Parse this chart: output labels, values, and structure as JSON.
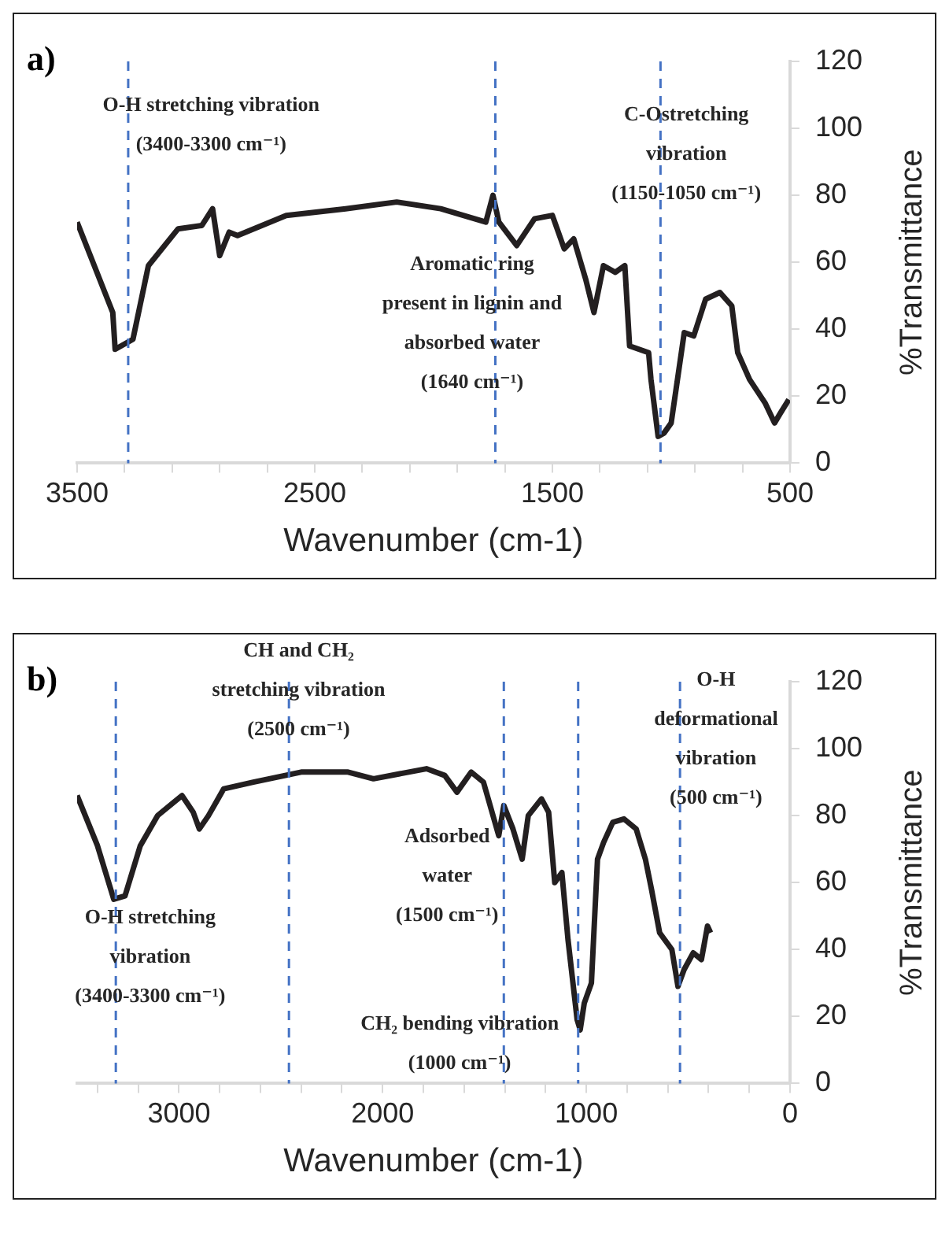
{
  "chart_data": [
    {
      "type": "line",
      "title": "a)",
      "xlabel": "Wavenumber (cm-1)",
      "ylabel": "%Transmittance",
      "xlim": [
        3500,
        500
      ],
      "ylim": [
        0,
        120
      ],
      "xticks": [
        3500,
        {
          "value": 3300,
          "label": null
        },
        {
          "value": 3100,
          "label": null
        },
        {
          "value": 2900,
          "label": null
        },
        {
          "value": 2700,
          "label": null
        },
        2500,
        {
          "value": 2300,
          "label": null
        },
        {
          "value": 2100,
          "label": null
        },
        {
          "value": 1900,
          "label": null
        },
        {
          "value": 1700,
          "label": null
        },
        1500,
        {
          "value": 1300,
          "label": null
        },
        {
          "value": 1100,
          "label": null
        },
        {
          "value": 900,
          "label": null
        },
        {
          "value": 700,
          "label": null
        },
        500
      ],
      "yticks": [
        0,
        20,
        40,
        60,
        80,
        100,
        120
      ],
      "grid": false,
      "legend": false,
      "marker": "none",
      "line_style": "solid",
      "series": [
        {
          "color": "#231f20",
          "x": [
            3500,
            3350,
            3340,
            3290,
            3265,
            3200,
            3075,
            2975,
            2930,
            2900,
            2860,
            2825,
            2620,
            2370,
            2155,
            1970,
            1780,
            1750,
            1725,
            1650,
            1575,
            1500,
            1450,
            1410,
            1360,
            1325,
            1285,
            1235,
            1195,
            1175,
            1095,
            1085,
            1055,
            1030,
            1000,
            945,
            905,
            855,
            795,
            745,
            720,
            670,
            605,
            565,
            540,
            505
          ],
          "values": [
            72,
            45,
            34,
            36,
            37,
            59,
            70,
            71,
            76,
            62,
            69,
            68,
            74,
            76,
            78,
            76,
            72,
            80,
            72,
            65,
            73,
            74,
            64,
            67,
            55,
            45,
            59,
            57,
            59,
            35,
            33,
            25,
            8,
            9,
            12,
            39,
            38,
            49,
            51,
            47,
            33,
            25,
            18,
            12,
            15,
            19
          ]
        }
      ],
      "ref_lines": [
        {
          "axis": "x",
          "value": 3285,
          "color": "#4472c4",
          "line_style": "dashed"
        },
        {
          "axis": "x",
          "value": 1740,
          "color": "#4472c4",
          "line_style": "dashed"
        },
        {
          "axis": "x",
          "value": 1045,
          "color": "#4472c4",
          "line_style": "dashed"
        }
      ],
      "annotations": [
        "O-H stretching vibration\n(3400-3300 cm⁻¹)",
        "C-Ostretching\nvibration\n(1150-1050 cm⁻¹)",
        "Aromatic ring\npresent in lignin and\nabsorbed water\n(1640 cm⁻¹)"
      ]
    },
    {
      "type": "line",
      "title": "b)",
      "xlabel": "Wavenumber (cm-1)",
      "ylabel": "%Transmittance",
      "xlim": [
        3500,
        0
      ],
      "ylim": [
        0,
        120
      ],
      "xticks": [
        {
          "value": 3400,
          "label": null
        },
        {
          "value": 3200,
          "label": null
        },
        3000,
        {
          "value": 2800,
          "label": null
        },
        {
          "value": 2600,
          "label": null
        },
        {
          "value": 2400,
          "label": null
        },
        {
          "value": 2200,
          "label": null
        },
        2000,
        {
          "value": 1800,
          "label": null
        },
        {
          "value": 1600,
          "label": null
        },
        {
          "value": 1400,
          "label": null
        },
        {
          "value": 1200,
          "label": null
        },
        1000,
        {
          "value": 800,
          "label": null
        },
        {
          "value": 600,
          "label": null
        },
        {
          "value": 400,
          "label": null
        },
        {
          "value": 200,
          "label": null
        },
        0
      ],
      "yticks": [
        0,
        20,
        40,
        60,
        80,
        100,
        120
      ],
      "grid": false,
      "legend": false,
      "marker": "none",
      "line_style": "solid",
      "series": [
        {
          "color": "#231f20",
          "x": [
            3500,
            3400,
            3320,
            3265,
            3190,
            3105,
            2985,
            2930,
            2900,
            2855,
            2780,
            2635,
            2400,
            2170,
            2045,
            1785,
            1695,
            1635,
            1565,
            1505,
            1430,
            1405,
            1360,
            1315,
            1285,
            1220,
            1185,
            1155,
            1120,
            1090,
            1045,
            1030,
            1010,
            975,
            945,
            915,
            870,
            815,
            755,
            710,
            680,
            640,
            580,
            550,
            520,
            475,
            435,
            405,
            390
          ],
          "values": [
            86,
            71,
            55,
            56,
            71,
            80,
            86,
            81,
            76,
            80,
            88,
            90,
            93,
            93,
            91,
            94,
            92,
            87,
            93,
            90,
            74,
            83,
            76,
            67,
            80,
            85,
            81,
            60,
            63,
            43,
            19,
            16,
            24,
            30,
            67,
            72,
            78,
            79,
            76,
            67,
            58,
            45,
            40,
            29,
            34,
            39,
            37,
            47,
            45
          ]
        }
      ],
      "ref_lines": [
        {
          "axis": "x",
          "value": 3310,
          "color": "#4472c4",
          "line_style": "dashed"
        },
        {
          "axis": "x",
          "value": 2460,
          "color": "#4472c4",
          "line_style": "dashed"
        },
        {
          "axis": "x",
          "value": 1405,
          "color": "#4472c4",
          "line_style": "dashed"
        },
        {
          "axis": "x",
          "value": 1040,
          "color": "#4472c4",
          "line_style": "dashed"
        },
        {
          "axis": "x",
          "value": 540,
          "color": "#4472c4",
          "line_style": "dashed"
        }
      ],
      "annotations": [
        "CH and CH₂\nstretching vibration\n(2500 cm⁻¹)",
        "O-H\ndeformational\nvibration\n(500 cm⁻¹)",
        "Adsorbed\nwater\n(1500 cm⁻¹)",
        "O-H stretching\nvibration\n(3400-3300 cm⁻¹)",
        "CH₂ bending vibration\n(1000 cm⁻¹)"
      ]
    }
  ]
}
